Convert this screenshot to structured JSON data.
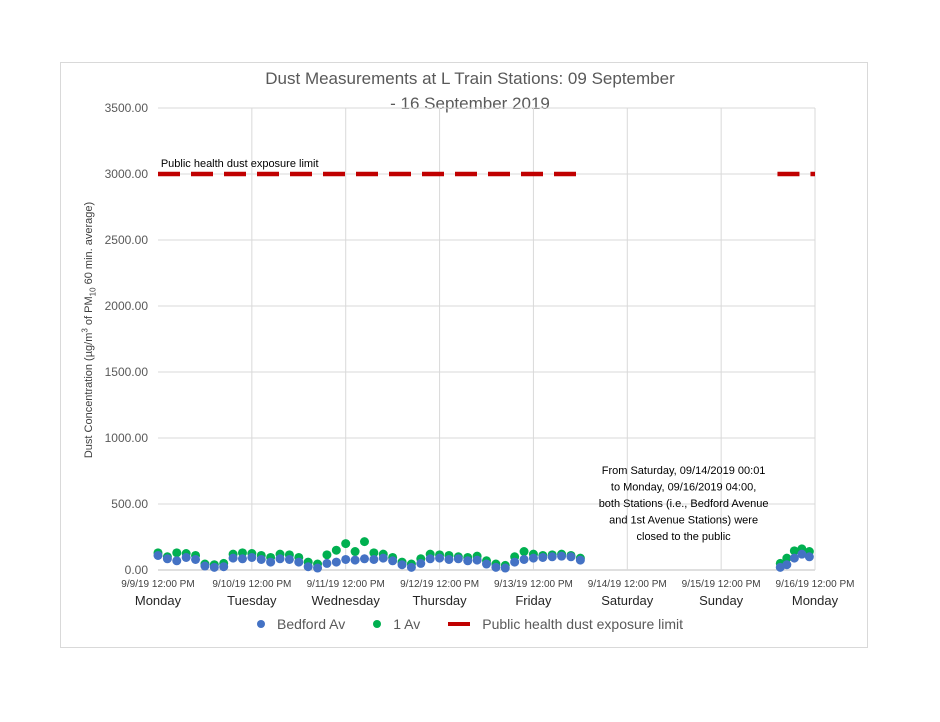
{
  "chart_data": {
    "type": "scatter",
    "title_lines": [
      "Dust Measurements at L Train Stations: 09 September",
      "- 16 September 2019"
    ],
    "ylabel_parts": [
      "Dust Concentration (µg/m",
      "3",
      " of PM",
      "10",
      " 60 min. average)"
    ],
    "ylim": [
      0,
      3500
    ],
    "yticks": [
      "0.00",
      "500.00",
      "1000.00",
      "1500.00",
      "2000.00",
      "2500.00",
      "3000.00",
      "3500.00"
    ],
    "xlim": [
      0,
      7
    ],
    "xticks": [
      "9/9/19 12:00 PM",
      "9/10/19 12:00 PM",
      "9/11/19 12:00 PM",
      "9/12/19 12:00 PM",
      "9/13/19 12:00 PM",
      "9/14/19 12:00 PM",
      "9/15/19 12:00 PM",
      "9/16/19 12:00 PM"
    ],
    "days": [
      "Monday",
      "Tuesday",
      "Wednesday",
      "Thursday",
      "Friday",
      "Saturday",
      "Sunday",
      "Monday"
    ],
    "grid": true,
    "legend_position": "bottom",
    "series": [
      {
        "name": "Bedford Av",
        "color": "#4472c4",
        "points": [
          [
            0.0,
            110
          ],
          [
            0.1,
            85
          ],
          [
            0.2,
            70
          ],
          [
            0.3,
            95
          ],
          [
            0.4,
            80
          ],
          [
            0.5,
            30
          ],
          [
            0.6,
            20
          ],
          [
            0.7,
            25
          ],
          [
            0.8,
            90
          ],
          [
            0.9,
            85
          ],
          [
            1.0,
            95
          ],
          [
            1.1,
            80
          ],
          [
            1.2,
            60
          ],
          [
            1.3,
            85
          ],
          [
            1.4,
            80
          ],
          [
            1.5,
            60
          ],
          [
            1.6,
            25
          ],
          [
            1.7,
            15
          ],
          [
            1.8,
            50
          ],
          [
            1.9,
            60
          ],
          [
            2.0,
            80
          ],
          [
            2.1,
            75
          ],
          [
            2.2,
            85
          ],
          [
            2.3,
            80
          ],
          [
            2.4,
            90
          ],
          [
            2.5,
            70
          ],
          [
            2.6,
            40
          ],
          [
            2.7,
            20
          ],
          [
            2.8,
            50
          ],
          [
            2.9,
            85
          ],
          [
            3.0,
            90
          ],
          [
            3.1,
            80
          ],
          [
            3.2,
            85
          ],
          [
            3.3,
            70
          ],
          [
            3.4,
            75
          ],
          [
            3.5,
            45
          ],
          [
            3.6,
            20
          ],
          [
            3.7,
            15
          ],
          [
            3.8,
            60
          ],
          [
            3.9,
            80
          ],
          [
            4.0,
            90
          ],
          [
            4.1,
            95
          ],
          [
            4.2,
            100
          ],
          [
            4.3,
            105
          ],
          [
            4.4,
            100
          ],
          [
            4.5,
            75
          ],
          [
            6.63,
            20
          ],
          [
            6.7,
            40
          ],
          [
            6.78,
            90
          ],
          [
            6.86,
            120
          ],
          [
            6.94,
            100
          ]
        ]
      },
      {
        "name": "1 Av",
        "color": "#00b050",
        "points": [
          [
            0.0,
            130
          ],
          [
            0.1,
            100
          ],
          [
            0.2,
            130
          ],
          [
            0.3,
            125
          ],
          [
            0.4,
            110
          ],
          [
            0.5,
            45
          ],
          [
            0.6,
            40
          ],
          [
            0.7,
            50
          ],
          [
            0.8,
            120
          ],
          [
            0.9,
            130
          ],
          [
            1.0,
            125
          ],
          [
            1.1,
            110
          ],
          [
            1.2,
            95
          ],
          [
            1.3,
            120
          ],
          [
            1.4,
            115
          ],
          [
            1.5,
            95
          ],
          [
            1.6,
            60
          ],
          [
            1.7,
            45
          ],
          [
            1.8,
            115
          ],
          [
            1.9,
            150
          ],
          [
            2.0,
            200
          ],
          [
            2.1,
            140
          ],
          [
            2.2,
            215
          ],
          [
            2.3,
            130
          ],
          [
            2.4,
            120
          ],
          [
            2.5,
            95
          ],
          [
            2.6,
            60
          ],
          [
            2.7,
            45
          ],
          [
            2.8,
            85
          ],
          [
            2.9,
            120
          ],
          [
            3.0,
            115
          ],
          [
            3.1,
            110
          ],
          [
            3.2,
            100
          ],
          [
            3.3,
            95
          ],
          [
            3.4,
            105
          ],
          [
            3.5,
            70
          ],
          [
            3.6,
            45
          ],
          [
            3.7,
            35
          ],
          [
            3.8,
            100
          ],
          [
            3.9,
            140
          ],
          [
            4.0,
            120
          ],
          [
            4.1,
            110
          ],
          [
            4.2,
            115
          ],
          [
            4.3,
            120
          ],
          [
            4.4,
            110
          ],
          [
            4.5,
            90
          ],
          [
            6.63,
            50
          ],
          [
            6.7,
            90
          ],
          [
            6.78,
            145
          ],
          [
            6.86,
            160
          ],
          [
            6.94,
            140
          ]
        ]
      },
      {
        "name": "Public health dust exposure limit",
        "color": "#c00000",
        "segments": [
          {
            "x": [
              0,
              4.5
            ],
            "y": 3000
          },
          {
            "x": [
              6.6,
              7.0
            ],
            "y": 3000
          }
        ]
      }
    ],
    "annotations": [
      {
        "text": "Public health dust exposure limit",
        "x": 0.03,
        "y": 3000
      },
      {
        "lines": [
          "From Saturday, 09/14/2019 00:01",
          "to Monday, 09/16/2019 04:00,",
          "both Stations (i.e., Bedford Avenue",
          "and 1st Avenue Stations) were",
          "closed to the public"
        ],
        "x": 5.6,
        "y": 500
      }
    ]
  }
}
